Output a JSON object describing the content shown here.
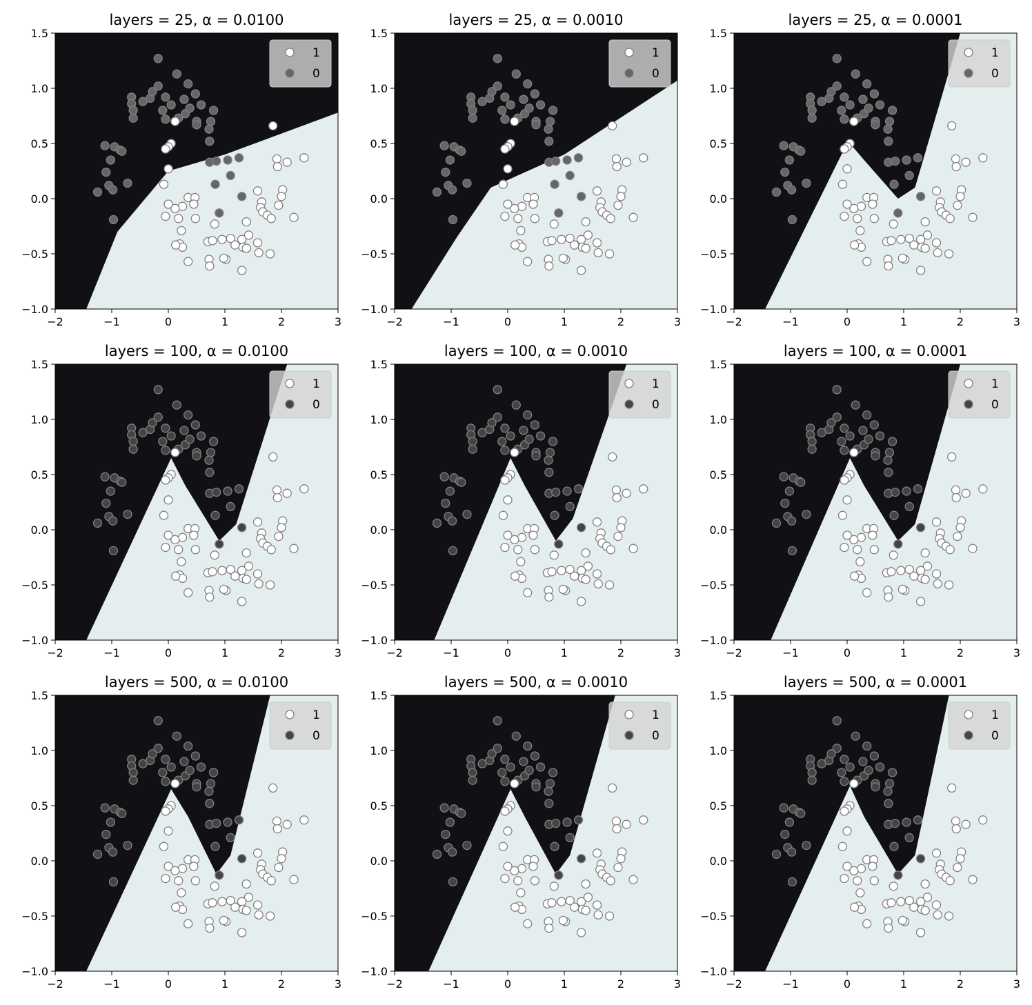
{
  "figure": {
    "x_ticks": [
      "−2",
      "−1",
      "0",
      "1",
      "2",
      "3"
    ],
    "y_ticks": [
      "−1.0",
      "−0.5",
      "0.0",
      "0.5",
      "1.0",
      "1.5"
    ]
  },
  "colors": {
    "region_class_0": "#101015",
    "region_class_1": "#e4eeee",
    "marker_class_1": "#ffffff",
    "marker_class_0_panel_first_row": "#666666",
    "marker_class_0": "#444444",
    "marker_edge": "#808080",
    "legend_bg": "#d4d4d4"
  },
  "legend": {
    "entries": [
      "1",
      "0"
    ]
  },
  "chart_data": [
    {
      "type": "scatter",
      "title": "layers = 25, α = 0.0100",
      "xlim": [
        -2,
        3
      ],
      "ylim": [
        -1,
        1.5
      ],
      "layers": 25,
      "alpha": 0.01,
      "boundary": [
        [
          -1.45,
          -1.0
        ],
        [
          -0.9,
          -0.3
        ],
        [
          0.0,
          0.25
        ],
        [
          1.0,
          0.4
        ],
        [
          3.0,
          0.78
        ]
      ]
    },
    {
      "type": "scatter",
      "title": "layers = 25, α = 0.0010",
      "xlim": [
        -2,
        3
      ],
      "ylim": [
        -1,
        1.5
      ],
      "layers": 25,
      "alpha": 0.001,
      "boundary": [
        [
          -1.7,
          -1.0
        ],
        [
          -0.9,
          -0.35
        ],
        [
          -0.3,
          0.1
        ],
        [
          1.0,
          0.4
        ],
        [
          3.0,
          1.07
        ]
      ]
    },
    {
      "type": "scatter",
      "title": "layers = 25, α = 0.0001",
      "xlim": [
        -2,
        3
      ],
      "ylim": [
        -1,
        1.5
      ],
      "layers": 25,
      "alpha": 0.0001,
      "boundary": [
        [
          -1.45,
          -1.0
        ],
        [
          -0.1,
          0.4
        ],
        [
          0.05,
          0.5
        ],
        [
          0.3,
          0.35
        ],
        [
          0.9,
          0.0
        ],
        [
          1.2,
          0.1
        ],
        [
          2.0,
          1.5
        ]
      ]
    },
    {
      "type": "scatter",
      "title": "layers = 100, α = 0.0100",
      "xlim": [
        -2,
        3
      ],
      "ylim": [
        -1,
        1.5
      ],
      "layers": 100,
      "alpha": 0.01,
      "boundary": [
        [
          -1.45,
          -1.0
        ],
        [
          0.05,
          0.65
        ],
        [
          0.3,
          0.4
        ],
        [
          0.9,
          -0.1
        ],
        [
          1.2,
          0.05
        ],
        [
          2.1,
          1.5
        ]
      ]
    },
    {
      "type": "scatter",
      "title": "layers = 100, α = 0.0010",
      "xlim": [
        -2,
        3
      ],
      "ylim": [
        -1,
        1.5
      ],
      "layers": 100,
      "alpha": 0.001,
      "boundary": [
        [
          -1.3,
          -1.0
        ],
        [
          0.05,
          0.65
        ],
        [
          0.3,
          0.4
        ],
        [
          0.85,
          -0.1
        ],
        [
          1.15,
          0.1
        ],
        [
          2.1,
          1.5
        ]
      ]
    },
    {
      "type": "scatter",
      "title": "layers = 100, α = 0.0001",
      "xlim": [
        -2,
        3
      ],
      "ylim": [
        -1,
        1.5
      ],
      "layers": 100,
      "alpha": 0.0001,
      "boundary": [
        [
          -1.35,
          -1.0
        ],
        [
          0.05,
          0.65
        ],
        [
          0.3,
          0.4
        ],
        [
          0.9,
          -0.1
        ],
        [
          1.2,
          0.05
        ],
        [
          2.0,
          1.5
        ]
      ]
    },
    {
      "type": "scatter",
      "title": "layers = 500, α = 0.0100",
      "xlim": [
        -2,
        3
      ],
      "ylim": [
        -1,
        1.5
      ],
      "layers": 500,
      "alpha": 0.01,
      "boundary": [
        [
          -1.45,
          -1.0
        ],
        [
          0.05,
          0.65
        ],
        [
          0.35,
          0.4
        ],
        [
          0.85,
          -0.12
        ],
        [
          1.1,
          0.05
        ],
        [
          1.8,
          1.5
        ]
      ]
    },
    {
      "type": "scatter",
      "title": "layers = 500, α = 0.0010",
      "xlim": [
        -2,
        3
      ],
      "ylim": [
        -1,
        1.5
      ],
      "layers": 500,
      "alpha": 0.001,
      "boundary": [
        [
          -1.4,
          -1.0
        ],
        [
          0.05,
          0.65
        ],
        [
          0.3,
          0.4
        ],
        [
          0.85,
          -0.12
        ],
        [
          1.1,
          0.05
        ],
        [
          1.9,
          1.5
        ]
      ]
    },
    {
      "type": "scatter",
      "title": "layers = 500, α = 0.0001",
      "xlim": [
        -2,
        3
      ],
      "ylim": [
        -1,
        1.5
      ],
      "layers": 500,
      "alpha": 0.0001,
      "boundary": [
        [
          -1.45,
          -1.0
        ],
        [
          0.05,
          0.68
        ],
        [
          0.3,
          0.4
        ],
        [
          0.9,
          -0.12
        ],
        [
          1.2,
          0.05
        ],
        [
          1.8,
          1.5
        ]
      ]
    }
  ],
  "points": {
    "class_0": [
      [
        -0.18,
        1.27
      ],
      [
        0.15,
        1.13
      ],
      [
        0.35,
        1.04
      ],
      [
        0.48,
        0.95
      ],
      [
        0.58,
        0.85
      ],
      [
        -0.65,
        0.92
      ],
      [
        -0.65,
        0.86
      ],
      [
        -0.62,
        0.8
      ],
      [
        -0.62,
        0.73
      ],
      [
        -0.45,
        0.88
      ],
      [
        -0.32,
        0.91
      ],
      [
        -0.28,
        0.97
      ],
      [
        -0.18,
        1.02
      ],
      [
        -0.05,
        0.92
      ],
      [
        0.05,
        0.85
      ],
      [
        -0.1,
        0.8
      ],
      [
        -0.05,
        0.72
      ],
      [
        0.12,
        0.7
      ],
      [
        0.18,
        0.73
      ],
      [
        0.28,
        0.9
      ],
      [
        0.3,
        0.77
      ],
      [
        0.38,
        0.82
      ],
      [
        0.5,
        0.7
      ],
      [
        0.5,
        0.67
      ],
      [
        0.75,
        0.7
      ],
      [
        0.72,
        0.63
      ],
      [
        0.8,
        0.8
      ],
      [
        0.73,
        0.52
      ],
      [
        -1.12,
        0.48
      ],
      [
        -0.95,
        0.47
      ],
      [
        -0.85,
        0.44
      ],
      [
        -0.82,
        0.43
      ],
      [
        -1.02,
        0.35
      ],
      [
        -1.1,
        0.24
      ],
      [
        -0.72,
        0.14
      ],
      [
        -1.05,
        0.12
      ],
      [
        -0.98,
        0.08
      ],
      [
        -1.25,
        0.06
      ],
      [
        -0.97,
        -0.19
      ],
      [
        0.73,
        0.33
      ],
      [
        0.85,
        0.34
      ],
      [
        1.05,
        0.35
      ],
      [
        1.1,
        0.21
      ],
      [
        1.25,
        0.37
      ],
      [
        0.83,
        0.13
      ],
      [
        1.3,
        0.02
      ],
      [
        0.9,
        -0.13
      ]
    ],
    "class_1": [
      [
        1.85,
        0.66
      ],
      [
        1.92,
        0.36
      ],
      [
        1.93,
        0.29
      ],
      [
        2.1,
        0.33
      ],
      [
        2.4,
        0.37
      ],
      [
        2.02,
        0.08
      ],
      [
        2.0,
        0.02
      ],
      [
        1.58,
        0.07
      ],
      [
        1.65,
        -0.03
      ],
      [
        1.63,
        -0.08
      ],
      [
        1.67,
        -0.12
      ],
      [
        1.75,
        -0.15
      ],
      [
        1.95,
        -0.06
      ],
      [
        1.82,
        -0.18
      ],
      [
        2.22,
        -0.17
      ],
      [
        1.38,
        -0.21
      ],
      [
        1.42,
        -0.33
      ],
      [
        1.3,
        -0.37
      ],
      [
        1.18,
        -0.42
      ],
      [
        1.32,
        -0.44
      ],
      [
        1.38,
        -0.45
      ],
      [
        1.58,
        -0.4
      ],
      [
        1.6,
        -0.49
      ],
      [
        1.8,
        -0.5
      ],
      [
        1.3,
        -0.65
      ],
      [
        1.02,
        -0.55
      ],
      [
        0.98,
        -0.54
      ],
      [
        1.1,
        -0.36
      ],
      [
        0.7,
        -0.39
      ],
      [
        0.78,
        -0.38
      ],
      [
        0.95,
        -0.37
      ],
      [
        0.72,
        -0.55
      ],
      [
        0.73,
        -0.61
      ],
      [
        0.82,
        -0.23
      ],
      [
        0.35,
        0.01
      ],
      [
        0.47,
        0.01
      ],
      [
        0.45,
        -0.05
      ],
      [
        0.25,
        -0.07
      ],
      [
        0.12,
        -0.09
      ],
      [
        0.0,
        -0.05
      ],
      [
        -0.05,
        -0.16
      ],
      [
        0.18,
        -0.18
      ],
      [
        0.48,
        -0.18
      ],
      [
        0.23,
        -0.29
      ],
      [
        0.2,
        -0.41
      ],
      [
        0.25,
        -0.44
      ],
      [
        0.13,
        -0.42
      ],
      [
        0.35,
        -0.57
      ],
      [
        0.12,
        0.7
      ],
      [
        0.05,
        0.5
      ],
      [
        0.0,
        0.47
      ],
      [
        -0.05,
        0.45
      ],
      [
        0.0,
        0.27
      ],
      [
        -0.08,
        0.13
      ]
    ]
  }
}
